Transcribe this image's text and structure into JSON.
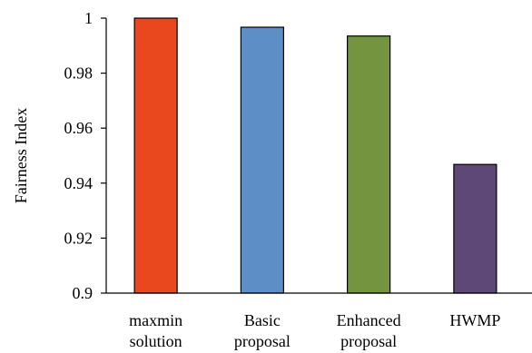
{
  "chart_data": {
    "type": "bar",
    "title": "",
    "xlabel": "",
    "ylabel": "Fairness Index",
    "ylim": [
      0.9,
      1.0
    ],
    "yticks": [
      "0.9",
      "0.92",
      "0.94",
      "0.96",
      "0.98",
      "1"
    ],
    "grid": false,
    "legend": "none",
    "categories": [
      [
        "maxmin",
        "solution"
      ],
      [
        "Basic",
        "proposal"
      ],
      [
        "Enhanced",
        "proposal"
      ],
      [
        "HWMP"
      ]
    ],
    "values": [
      1.0,
      0.9967,
      0.9935,
      0.9468
    ],
    "colors": [
      "#e9481f",
      "#5e8ec6",
      "#759440",
      "#5e4877"
    ]
  }
}
